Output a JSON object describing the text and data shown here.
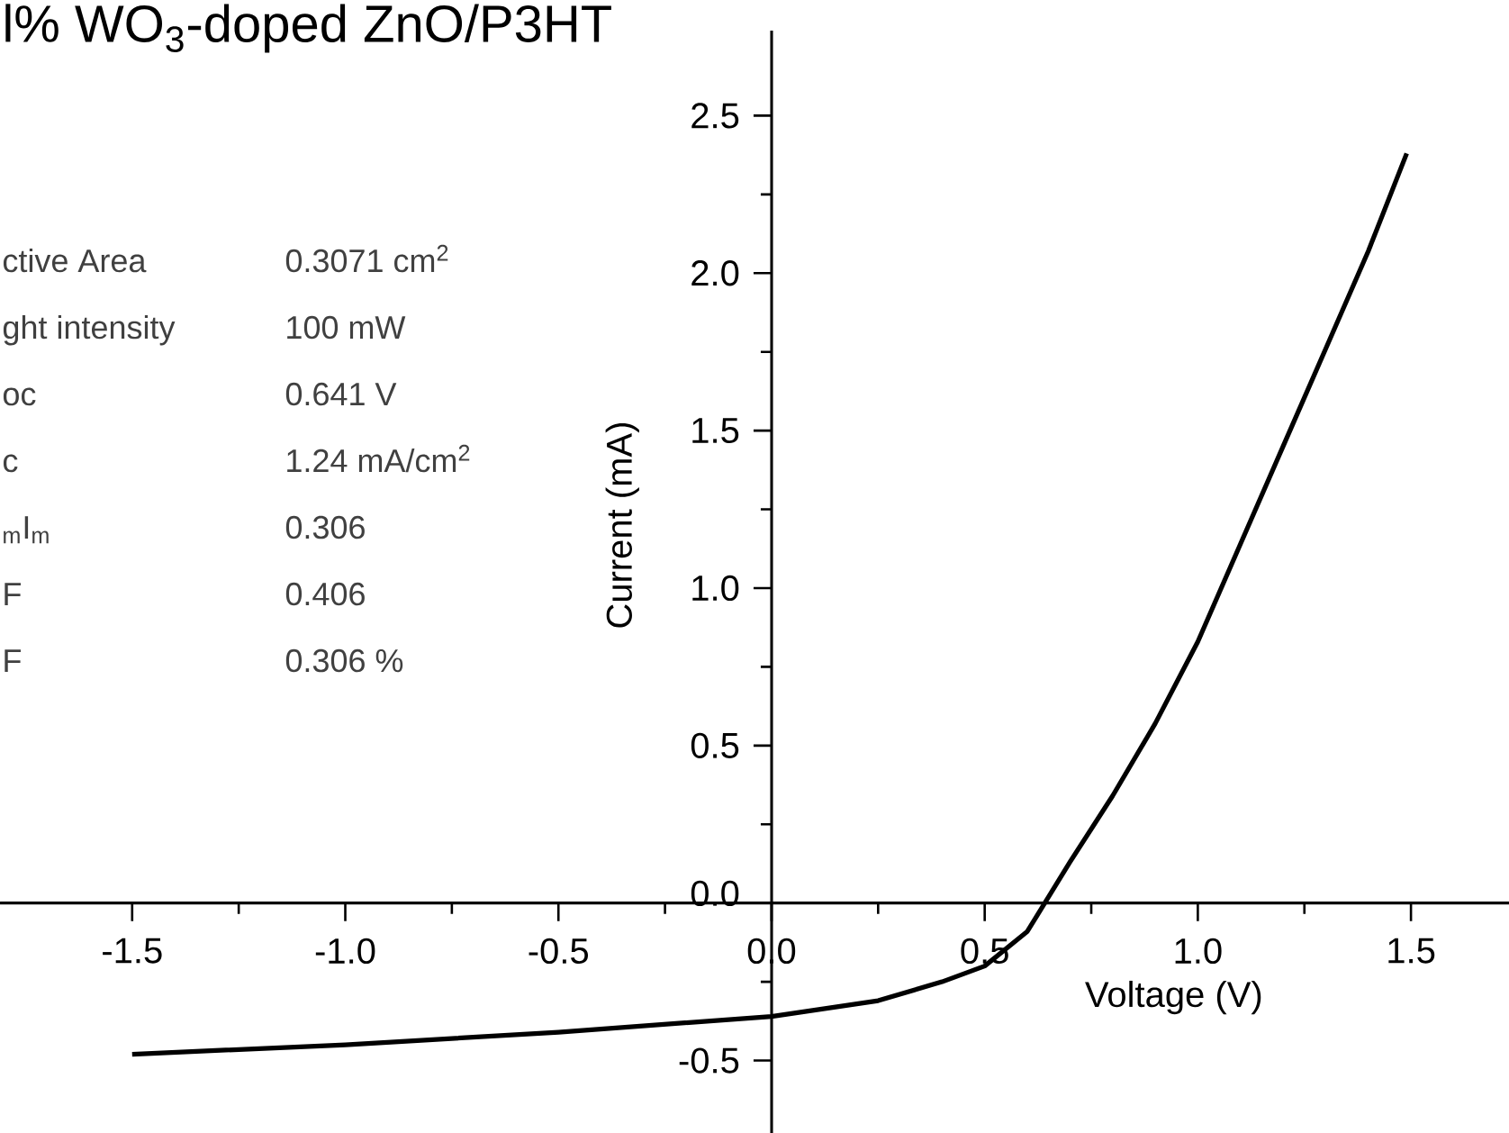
{
  "chart_data": {
    "type": "line",
    "title": "l% WO$_{3}$-doped ZnO/P3HT",
    "xlabel": "Voltage (V)",
    "ylabel": "Current (mA)",
    "annotations": [
      "ctive Area",
      "0.3071 cm$^{2}$",
      "ght intensity",
      "100    mW",
      "oc",
      "0.641  V",
      "c",
      "1.24  mA/cm$^{2}$",
      "$_{m}$I$_{m}$",
      "0.306",
      "F",
      "0.406",
      "F",
      "0.306 %"
    ],
    "x": [
      -1.5,
      -1.0,
      -0.5,
      0.0,
      0.25,
      0.4,
      0.5,
      0.6,
      0.641,
      0.7,
      0.8,
      0.9,
      1.0,
      1.1,
      1.2,
      1.3,
      1.4,
      1.49
    ],
    "series": [
      {
        "color": "#000000",
        "values": [
          -0.48,
          -0.45,
          -0.41,
          -0.36,
          -0.31,
          -0.25,
          -0.2,
          -0.09,
          0.0,
          0.13,
          0.34,
          0.57,
          0.83,
          1.14,
          1.45,
          1.76,
          2.07,
          2.38
        ]
      }
    ],
    "xlim": [
      -1.81,
      1.73
    ],
    "ylim": [
      -0.73,
      2.77
    ],
    "xticks": [
      -1.5,
      {
        "value": -1.0,
        "label": "-1.0"
      },
      -0.5,
      {
        "value": 0.0,
        "label": "0.0"
      },
      0.5,
      {
        "value": 1.0,
        "label": "1.0"
      },
      1.5
    ],
    "yticks": [
      -0.5,
      {
        "value": 0.0,
        "label": "0.0"
      },
      0.5,
      {
        "value": 1.0,
        "label": "1.0"
      },
      1.5,
      {
        "value": 2.0,
        "label": "2.0"
      },
      2.5
    ],
    "grid": false,
    "legend": false,
    "marker": "none",
    "line_style": "solid"
  }
}
